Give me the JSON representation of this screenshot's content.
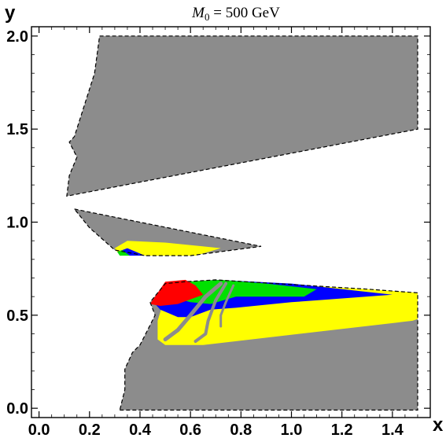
{
  "chart_data": {
    "type": "area",
    "title": {
      "var": "M",
      "sub": "0",
      "rest": " = 500 GeV"
    },
    "xlabel": "x",
    "ylabel": "y",
    "xlim": [
      -0.03,
      1.55
    ],
    "ylim": [
      -0.05,
      2.05
    ],
    "xticks": [
      "0.0",
      "0.2",
      "0.4",
      "0.6",
      "0.8",
      "1.0",
      "1.2",
      "1.4"
    ],
    "yticks": [
      "0.0",
      "0.5",
      "1.0",
      "1.5",
      "2.0"
    ],
    "grid": false,
    "colors": {
      "gray": "#8c8c8c",
      "yellow": "#ffff00",
      "blue": "#0000ff",
      "green": "#00e000",
      "red": "#ff0000"
    },
    "regions": [
      {
        "name": "top-gray",
        "color": "gray",
        "boundary": true,
        "points": [
          [
            0.24,
            2.0
          ],
          [
            1.5,
            2.0
          ],
          [
            1.5,
            1.5
          ],
          [
            0.11,
            1.14
          ],
          [
            0.12,
            1.25
          ],
          [
            0.15,
            1.35
          ],
          [
            0.12,
            1.43
          ],
          [
            0.14,
            1.46
          ],
          [
            0.22,
            1.8
          ],
          [
            0.24,
            2.0
          ]
        ]
      },
      {
        "name": "middle-gray",
        "color": "gray",
        "boundary": true,
        "points": [
          [
            0.14,
            1.07
          ],
          [
            0.88,
            0.87
          ],
          [
            0.6,
            0.82
          ],
          [
            0.42,
            0.82
          ],
          [
            0.3,
            0.85
          ],
          [
            0.2,
            0.97
          ],
          [
            0.14,
            1.07
          ]
        ]
      },
      {
        "name": "middle-yellow",
        "color": "yellow",
        "points": [
          [
            0.3,
            0.86
          ],
          [
            0.35,
            0.9
          ],
          [
            0.5,
            0.89
          ],
          [
            0.72,
            0.86
          ],
          [
            0.62,
            0.82
          ],
          [
            0.42,
            0.82
          ],
          [
            0.31,
            0.84
          ]
        ]
      },
      {
        "name": "middle-blue",
        "color": "blue",
        "points": [
          [
            0.31,
            0.84
          ],
          [
            0.35,
            0.86
          ],
          [
            0.42,
            0.82
          ],
          [
            0.36,
            0.82
          ]
        ]
      },
      {
        "name": "middle-green",
        "color": "green",
        "points": [
          [
            0.31,
            0.84
          ],
          [
            0.33,
            0.85
          ],
          [
            0.36,
            0.82
          ],
          [
            0.32,
            0.82
          ]
        ]
      },
      {
        "name": "lower-gray",
        "color": "gray",
        "boundary": true,
        "points": [
          [
            0.32,
            -0.01
          ],
          [
            1.5,
            -0.01
          ],
          [
            1.5,
            0.62
          ],
          [
            1.3,
            0.64
          ],
          [
            0.7,
            0.69
          ],
          [
            0.58,
            0.68
          ],
          [
            0.5,
            0.67
          ],
          [
            0.44,
            0.57
          ],
          [
            0.46,
            0.5
          ],
          [
            0.43,
            0.42
          ],
          [
            0.4,
            0.34
          ],
          [
            0.37,
            0.3
          ],
          [
            0.34,
            0.21
          ],
          [
            0.34,
            0.1
          ],
          [
            0.32,
            -0.01
          ]
        ]
      },
      {
        "name": "lower-yellow",
        "color": "yellow",
        "points": [
          [
            0.49,
            0.56
          ],
          [
            0.56,
            0.63
          ],
          [
            0.7,
            0.69
          ],
          [
            1.3,
            0.64
          ],
          [
            1.5,
            0.62
          ],
          [
            1.5,
            0.48
          ],
          [
            1.48,
            0.47
          ],
          [
            0.65,
            0.34
          ],
          [
            0.5,
            0.34
          ],
          [
            0.47,
            0.37
          ],
          [
            0.47,
            0.47
          ],
          [
            0.49,
            0.56
          ]
        ]
      },
      {
        "name": "lower-blue",
        "color": "blue",
        "points": [
          [
            0.46,
            0.56
          ],
          [
            0.5,
            0.66
          ],
          [
            0.7,
            0.69
          ],
          [
            1.0,
            0.67
          ],
          [
            1.4,
            0.61
          ],
          [
            1.0,
            0.57
          ],
          [
            0.78,
            0.54
          ],
          [
            0.68,
            0.53
          ],
          [
            0.6,
            0.49
          ],
          [
            0.55,
            0.49
          ],
          [
            0.48,
            0.53
          ],
          [
            0.46,
            0.56
          ]
        ]
      },
      {
        "name": "lower-green",
        "color": "green",
        "points": [
          [
            0.5,
            0.67
          ],
          [
            0.58,
            0.68
          ],
          [
            0.72,
            0.69
          ],
          [
            0.9,
            0.67
          ],
          [
            1.1,
            0.64
          ],
          [
            1.05,
            0.6
          ],
          [
            0.9,
            0.6
          ],
          [
            0.78,
            0.6
          ],
          [
            0.68,
            0.56
          ],
          [
            0.6,
            0.57
          ],
          [
            0.52,
            0.6
          ],
          [
            0.5,
            0.67
          ]
        ]
      },
      {
        "name": "lower-red",
        "color": "red",
        "points": [
          [
            0.44,
            0.56
          ],
          [
            0.5,
            0.68
          ],
          [
            0.58,
            0.69
          ],
          [
            0.62,
            0.66
          ],
          [
            0.65,
            0.61
          ],
          [
            0.61,
            0.59
          ],
          [
            0.55,
            0.56
          ],
          [
            0.48,
            0.55
          ],
          [
            0.44,
            0.56
          ]
        ]
      }
    ],
    "bands": [
      {
        "name": "gray-arc-1",
        "color": "gray",
        "points": [
          [
            0.72,
            0.67
          ],
          [
            0.66,
            0.6
          ],
          [
            0.6,
            0.5
          ],
          [
            0.55,
            0.42
          ],
          [
            0.5,
            0.37
          ]
        ],
        "width": 5
      },
      {
        "name": "gray-arc-2",
        "color": "gray",
        "points": [
          [
            0.74,
            0.67
          ],
          [
            0.7,
            0.58
          ],
          [
            0.67,
            0.47
          ],
          [
            0.66,
            0.4
          ],
          [
            0.62,
            0.36
          ]
        ],
        "width": 4
      },
      {
        "name": "gray-arc-3",
        "color": "gray",
        "points": [
          [
            0.77,
            0.66
          ],
          [
            0.74,
            0.57
          ],
          [
            0.72,
            0.5
          ],
          [
            0.72,
            0.44
          ]
        ],
        "width": 3
      }
    ]
  }
}
